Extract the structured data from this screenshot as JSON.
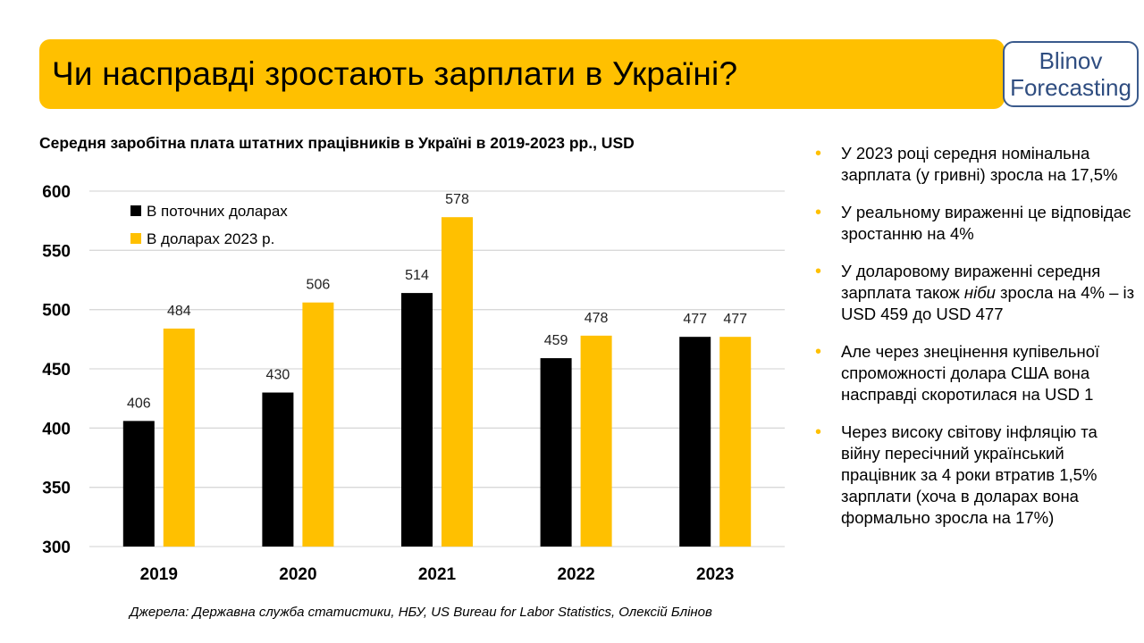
{
  "title": "Чи насправді зростають зарплати в Україні?",
  "logo": {
    "line1": "Blinov",
    "line2": "Forecasting"
  },
  "chart_title": "Середня заробітна плата штатних працівників  в Україні в 2019-2023 рр., USD",
  "source": "Джерела: Державна служба статистики, НБУ, US Bureau for Labor Statistics, Олексій Блінов",
  "colors": {
    "accent": "#FFC000",
    "black_series": "#000000",
    "logo_border": "#3A5A8C"
  },
  "chart_data": {
    "type": "bar",
    "title": "Середня заробітна плата штатних працівників  в Україні в 2019-2023 рр., USD",
    "categories": [
      "2019",
      "2020",
      "2021",
      "2022",
      "2023"
    ],
    "series": [
      {
        "name": "В поточних доларах",
        "color": "#000000",
        "values": [
          406,
          430,
          514,
          459,
          477
        ]
      },
      {
        "name": "В доларах 2023 р.",
        "color": "#FFC000",
        "values": [
          484,
          506,
          578,
          478,
          477
        ]
      }
    ],
    "ylim": [
      300,
      600
    ],
    "yticks": [
      300,
      350,
      400,
      450,
      500,
      550,
      600
    ],
    "grid": true,
    "legend_position": "top-left"
  },
  "bullets": [
    {
      "parts": [
        {
          "text": "У 2023 році середня номінальна зарплата (у гривні) зросла на 17,5%"
        }
      ]
    },
    {
      "parts": [
        {
          "text": "У реальному вираженні це відповідає зростанню на 4%"
        }
      ]
    },
    {
      "parts": [
        {
          "text": "У доларовому вираженні середня зарплата також "
        },
        {
          "text": "ніби",
          "italic": true
        },
        {
          "text": " зросла на 4% – із USD 459 до USD 477"
        }
      ]
    },
    {
      "parts": [
        {
          "text": "Але через знецінення купівельної спроможності долара США вона насправді скоротилася на USD 1"
        }
      ]
    },
    {
      "parts": [
        {
          "text": "Через високу світову інфляцію та війну пересічний український працівник за 4 роки втратив 1,5% зарплати (хоча в доларах вона формально зросла на 17%)"
        }
      ]
    }
  ]
}
